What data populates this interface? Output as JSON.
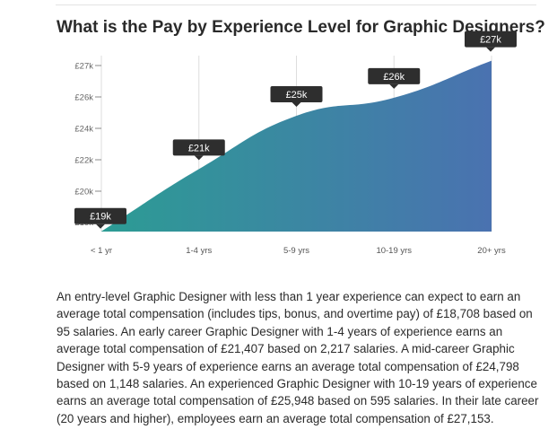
{
  "chart_data": {
    "type": "area",
    "title": "What is the Pay by Experience Level for Graphic Designers?",
    "categories": [
      "< 1 yr",
      "1-4 yrs",
      "5-9 yrs",
      "10-19 yrs",
      "20+ yrs"
    ],
    "values": [
      18708,
      21407,
      24798,
      25948,
      27153
    ],
    "data_labels": [
      "£19k",
      "£21k",
      "£25k",
      "£26k",
      "£27k"
    ],
    "ytick_values": [
      19000,
      20000,
      22000,
      24000,
      26000,
      27000
    ],
    "ytick_labels": [
      "£19k",
      "£20k",
      "£22k",
      "£24k",
      "£26k",
      "£27k"
    ],
    "ylim": [
      18700,
      27000
    ],
    "grid": "vertical",
    "colors": {
      "gradient_start": "#2c9c94",
      "gradient_end": "#4a72b0",
      "label_bg": "#2e2e2e",
      "grid": "#dddddd"
    }
  },
  "description": "An entry-level Graphic Designer with less than 1 year experience can expect to earn an average total compensation (includes tips, bonus, and overtime pay) of £18,708 based on 95 salaries. An early career Graphic Designer with 1-4 years of experience earns an average total compensation of £21,407 based on 2,217 salaries. A mid-career Graphic Designer with 5-9 years of experience earns an average total compensation of £24,798 based on 1,148 salaries. An experienced Graphic Designer with 10-19 years of experience earns an average total compensation of £25,948 based on 595 salaries. In their late career (20 years and higher), employees earn an average total compensation of £27,153."
}
